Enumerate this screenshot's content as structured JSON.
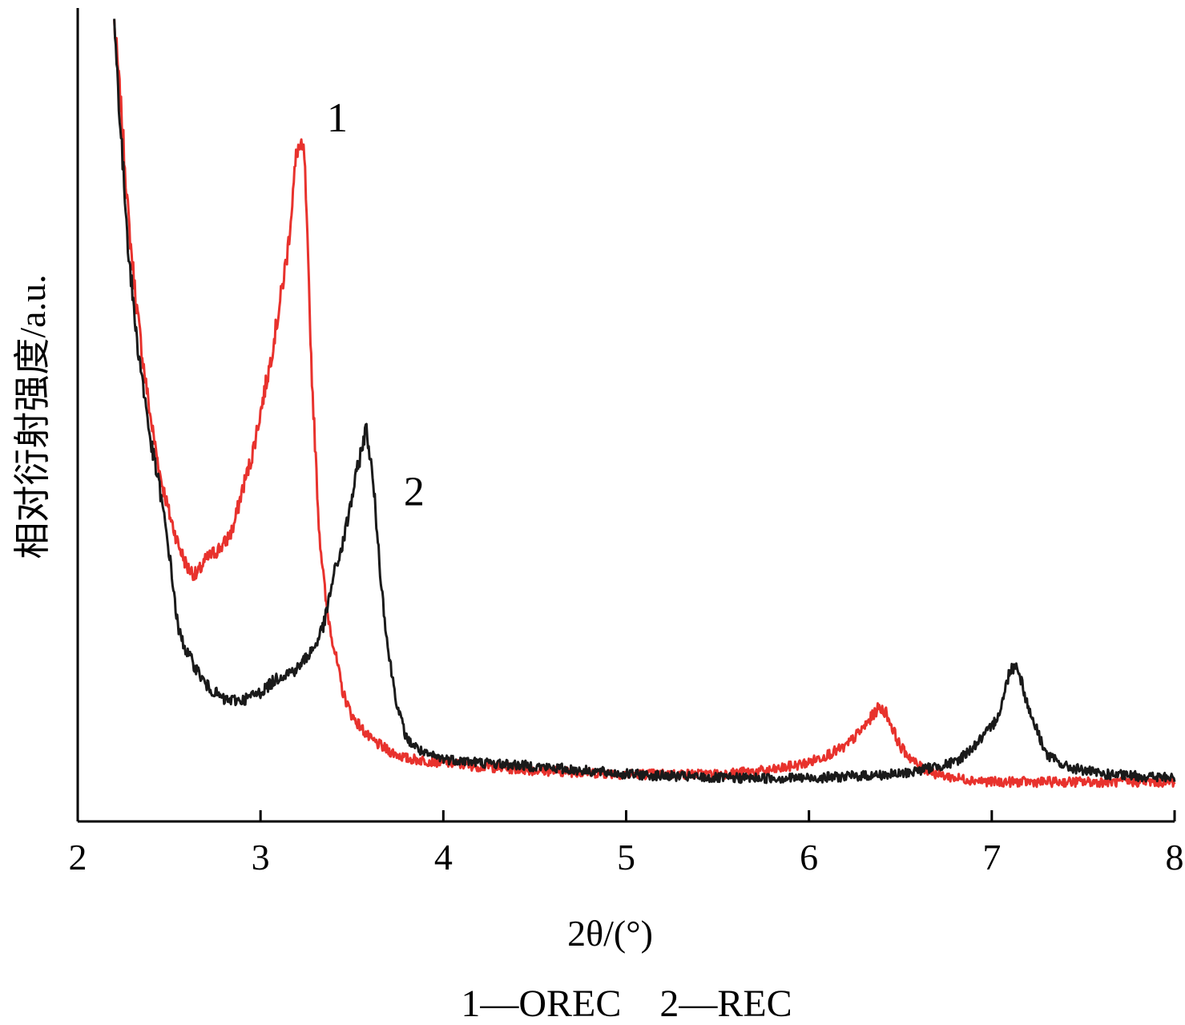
{
  "chart_data": {
    "type": "line",
    "xlabel": "2θ/(°)",
    "ylabel": "相对衍射强度/a.u.",
    "xlim": [
      2,
      8
    ],
    "ylim": [
      0,
      100
    ],
    "xticks": [
      "2",
      "3",
      "4",
      "5",
      "6",
      "7",
      "8"
    ],
    "yticks": [],
    "grid": false,
    "caption": "1—OREC    2—REC",
    "series": [
      {
        "name": "1",
        "color": "#e8322d",
        "x": [
          2.2,
          2.24,
          2.28,
          2.32,
          2.36,
          2.4,
          2.45,
          2.5,
          2.55,
          2.6,
          2.65,
          2.7,
          2.75,
          2.8,
          2.85,
          2.9,
          2.95,
          3.0,
          3.05,
          3.1,
          3.15,
          3.2,
          3.24,
          3.28,
          3.32,
          3.36,
          3.4,
          3.45,
          3.5,
          3.6,
          3.7,
          3.8,
          4.0,
          4.2,
          4.5,
          5.0,
          5.5,
          5.8,
          6.0,
          6.2,
          6.3,
          6.38,
          6.42,
          6.5,
          6.6,
          6.7,
          6.8,
          7.0,
          7.2,
          7.5,
          8.0
        ],
        "y": [
          100,
          88,
          74,
          64,
          56,
          49,
          42,
          37,
          33,
          30,
          29,
          31,
          32,
          33,
          35,
          40,
          44,
          50,
          56,
          63,
          71,
          84,
          83,
          55,
          35,
          25,
          20,
          14,
          11,
          8,
          6.5,
          5.5,
          5,
          4.5,
          4,
          3.5,
          3.5,
          4,
          5,
          7,
          9.5,
          12,
          11.5,
          7,
          4.5,
          3.5,
          3,
          2.5,
          2.5,
          2.5,
          2.5
        ]
      },
      {
        "name": "2",
        "color": "#1a1a1a",
        "x": [
          2.2,
          2.24,
          2.28,
          2.32,
          2.36,
          2.4,
          2.45,
          2.5,
          2.55,
          2.6,
          2.7,
          2.8,
          2.9,
          3.0,
          3.1,
          3.2,
          3.3,
          3.35,
          3.4,
          3.45,
          3.5,
          3.55,
          3.58,
          3.62,
          3.66,
          3.7,
          3.75,
          3.8,
          3.9,
          4.0,
          4.2,
          4.5,
          5.0,
          5.5,
          6.0,
          6.5,
          6.8,
          6.9,
          7.0,
          7.05,
          7.1,
          7.14,
          7.2,
          7.3,
          7.4,
          7.6,
          8.0
        ],
        "y": [
          100,
          84,
          70,
          60,
          53,
          46,
          40,
          32,
          22,
          19,
          15,
          13,
          13,
          14,
          16,
          17,
          20,
          23,
          29,
          33,
          39,
          45,
          48,
          40,
          28,
          19,
          12,
          8,
          6,
          5.5,
          5,
          4.5,
          3.5,
          3,
          3,
          3.5,
          5,
          7,
          9.5,
          12,
          17,
          17.5,
          12,
          6,
          4.5,
          3.5,
          3
        ]
      }
    ],
    "annotations": [
      {
        "text": "1",
        "x": 3.42,
        "y": 86
      },
      {
        "text": "2",
        "x": 3.84,
        "y": 38
      }
    ]
  }
}
